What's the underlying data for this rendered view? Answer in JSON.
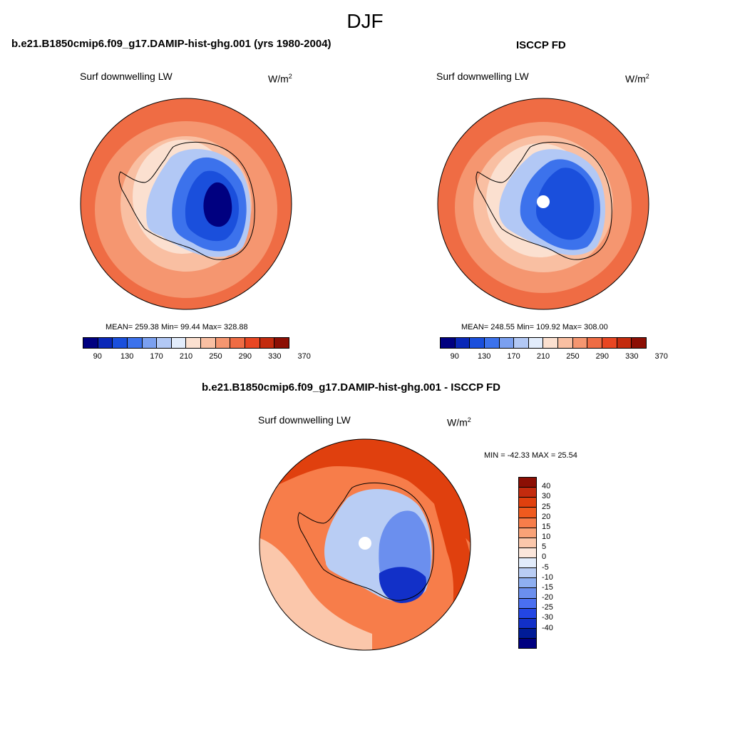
{
  "figure": {
    "season": "DJF",
    "diff_title": "b.e21.B1850cmip6.f09_g17.DAMIP-hist-ghg.001 - ISCCP FD"
  },
  "panels": {
    "model": {
      "title": "b.e21.B1850cmip6.f09_g17.DAMIP-hist-ghg.001 (yrs 1980-2004)",
      "variable": "Surf downwelling LW",
      "units_base": "W/m",
      "units_exp": "2",
      "stats": "MEAN= 259.38  Min=  99.44  Max= 328.88"
    },
    "obs": {
      "title": "ISCCP FD",
      "variable": "Surf downwelling LW",
      "units_base": "W/m",
      "units_exp": "2",
      "stats": "MEAN= 248.55  Min= 109.92  Max= 308.00"
    },
    "diff": {
      "variable": "Surf downwelling LW",
      "units_base": "W/m",
      "units_exp": "2",
      "stats": "MIN = -42.33 MAX =  25.54"
    }
  },
  "colorbars": {
    "abs": {
      "colors": [
        "#000080",
        "#0a28b8",
        "#1a4fdc",
        "#3c72ec",
        "#7ba0f0",
        "#b2c8f5",
        "#e2ecfb",
        "#fbe0d0",
        "#f9bfa2",
        "#f59670",
        "#ef6c44",
        "#e84622",
        "#c32b0e",
        "#8c0f04"
      ],
      "ticks": [
        "90",
        "130",
        "170",
        "210",
        "250",
        "290",
        "330",
        "370"
      ]
    },
    "diff": {
      "colors": [
        "#8c0f04",
        "#c32b0e",
        "#e0400e",
        "#f05a1e",
        "#f77d4a",
        "#f9a277",
        "#fbc7ab",
        "#fbe6db",
        "#e2ecfb",
        "#b9cdf4",
        "#8eaff1",
        "#6b8fee",
        "#4a6ff0",
        "#2346e4",
        "#1230c8",
        "#001b96",
        "#000080"
      ],
      "ticks": [
        "40",
        "30",
        "25",
        "20",
        "15",
        "10",
        "5",
        "0",
        "-5",
        "-10",
        "-15",
        "-20",
        "-25",
        "-30",
        "-40"
      ]
    }
  },
  "map_colors": {
    "ocean_outer": "#ef6c44",
    "ocean_mid": "#f59670",
    "ocean_inner": "#f9bfa2",
    "coast_pale": "#fbe0d0",
    "ice_light": "#b2c8f5",
    "ice_mid": "#3c72ec",
    "ice_deep": "#1a4fdc",
    "ice_core": "#000080",
    "diff_ocean_hi": "#e0400e",
    "diff_ocean_mid": "#f77d4a",
    "diff_ocean_lo": "#fbc7ab",
    "diff_land_lo": "#b9cdf4",
    "diff_land_mid": "#6b8fee",
    "diff_land_hi": "#1230c8"
  }
}
